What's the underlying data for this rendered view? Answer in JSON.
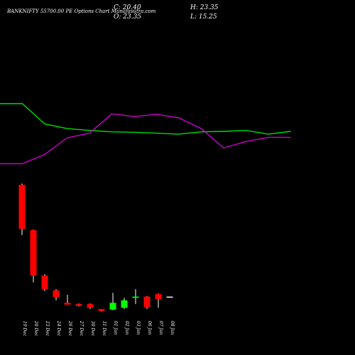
{
  "header": {
    "title": "BANKNIFTY 55700.00  PE Options  Chart Munafasutra.com",
    "close": "C: 20.40",
    "open": "O: 23.35",
    "high": "H: 23.35",
    "low": "L: 15.25"
  },
  "colors": {
    "background": "#000000",
    "up": "#00ff00",
    "down": "#ff0000",
    "line_green": "#00dd00",
    "line_magenta": "#cc00cc",
    "wick": "#ffffff",
    "text": "#ffffff"
  },
  "chart_data": [
    {
      "type": "line",
      "panel": "indicator",
      "x": [
        "19 Dec",
        "20 Dec",
        "23 Dec",
        "24 Dec",
        "26 Dec",
        "27 Dec",
        "30 Dec",
        "31 Dec",
        "01 Jan",
        "02 Jan",
        "03 Jan",
        "06 Jan",
        "07 Jan",
        "08 Jan"
      ],
      "ylim": [
        0,
        100
      ],
      "series": [
        {
          "color": "#00dd00",
          "values": [
            80,
            80,
            58,
            53,
            51,
            49.5,
            49,
            48,
            47,
            49.5,
            50,
            51,
            47,
            50
          ]
        },
        {
          "color": "#cc00cc",
          "values": [
            15,
            15,
            25,
            43,
            48,
            69,
            66,
            68.5,
            64.5,
            53,
            32,
            39,
            43.5,
            43.5
          ]
        }
      ]
    },
    {
      "type": "candlestick",
      "panel": "price",
      "categories": [
        "19 Dec",
        "20 Dec",
        "23 Dec",
        "24 Dec",
        "26 Dec",
        "27 Dec",
        "30 Dec",
        "31 Dec",
        "01 Jan",
        "02 Jan",
        "03 Jan",
        "06 Jan",
        "07 Jan",
        "08 Jan"
      ],
      "ylim": [
        0,
        100
      ],
      "candles": [
        {
          "open": 97,
          "high": 98,
          "low": 56.5,
          "close": 61.5
        },
        {
          "open": 60.5,
          "high": 61,
          "low": 18.5,
          "close": 24
        },
        {
          "open": 24,
          "high": 25,
          "low": 11.5,
          "close": 13
        },
        {
          "open": 12,
          "high": 13,
          "low": 4,
          "close": 6.5
        },
        {
          "open": 2,
          "high": 8.5,
          "low": 1,
          "close": 0.5
        },
        {
          "open": 1,
          "high": 1.5,
          "low": -1,
          "close": -0.5
        },
        {
          "open": 1,
          "high": 1.5,
          "low": -3,
          "close": -2
        },
        {
          "open": -3,
          "high": -3,
          "low": -5,
          "close": -4.5
        },
        {
          "open": -3.5,
          "high": 10,
          "low": -4,
          "close": 2
        },
        {
          "open": -2,
          "high": 6,
          "low": -3,
          "close": 4
        },
        {
          "open": 6,
          "high": 13,
          "low": 1,
          "close": 7
        },
        {
          "open": 7,
          "high": 7.5,
          "low": -3,
          "close": -1.5
        },
        {
          "open": 9,
          "high": 9.5,
          "low": -2,
          "close": 5
        },
        {
          "open": 7,
          "high": 7,
          "low": 7,
          "close": 7
        }
      ]
    }
  ]
}
